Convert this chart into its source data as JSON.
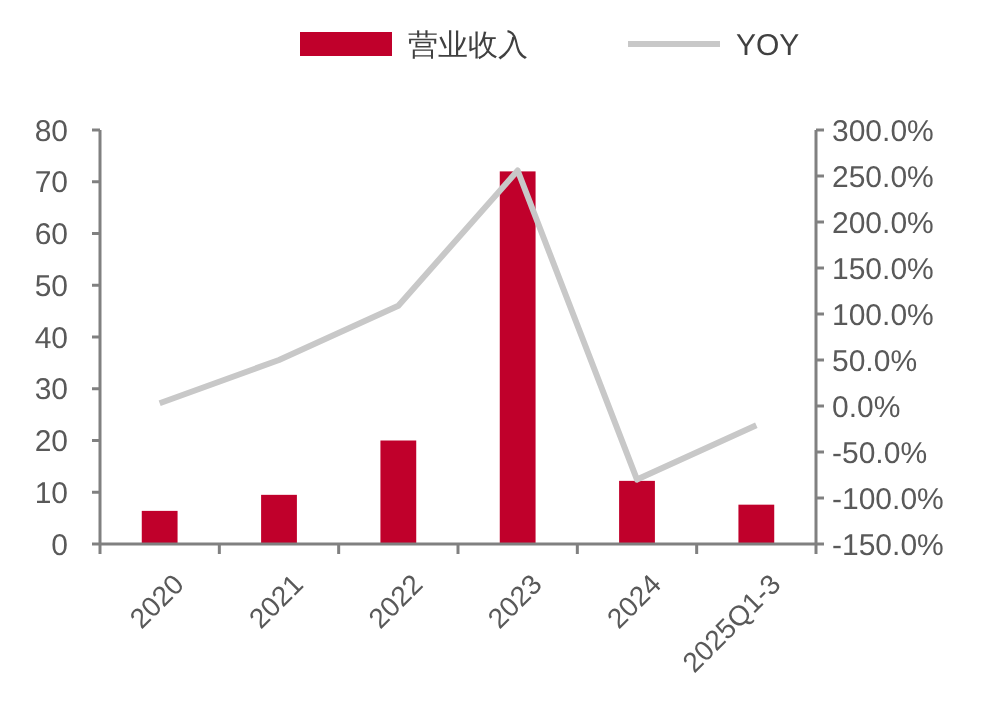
{
  "chart_data": {
    "type": "bar",
    "categories": [
      "2020",
      "2021",
      "2022",
      "2023",
      "2024",
      "2025Q1-3"
    ],
    "series": [
      {
        "name": "营业收入",
        "color": "#c0002b",
        "values": [
          6.4,
          9.5,
          20,
          72,
          12.2,
          7.6
        ]
      },
      {
        "name": "YOY",
        "type": "line",
        "axis": "y2",
        "color": "#c8c8c8",
        "values": [
          3,
          50,
          109,
          256,
          -80,
          -21
        ]
      }
    ],
    "ylim": [
      0,
      80
    ],
    "yticks": [
      0,
      10,
      20,
      30,
      40,
      50,
      60,
      70,
      80
    ],
    "y2lim": [
      -150,
      300
    ],
    "y2ticks": [
      {
        "value": -150,
        "label": "-150.0%"
      },
      {
        "value": -100,
        "label": "-100.0%"
      },
      {
        "value": -50,
        "label": "-50.0%"
      },
      {
        "value": 0,
        "label": "0.0%"
      },
      {
        "value": 50,
        "label": "50.0%"
      },
      {
        "value": 100,
        "label": "100.0%"
      },
      {
        "value": 150,
        "label": "150.0%"
      },
      {
        "value": 200,
        "label": "200.0%"
      },
      {
        "value": 250,
        "label": "250.0%"
      },
      {
        "value": 300,
        "label": "300.0%"
      }
    ],
    "legend": "top",
    "marker": "none"
  }
}
